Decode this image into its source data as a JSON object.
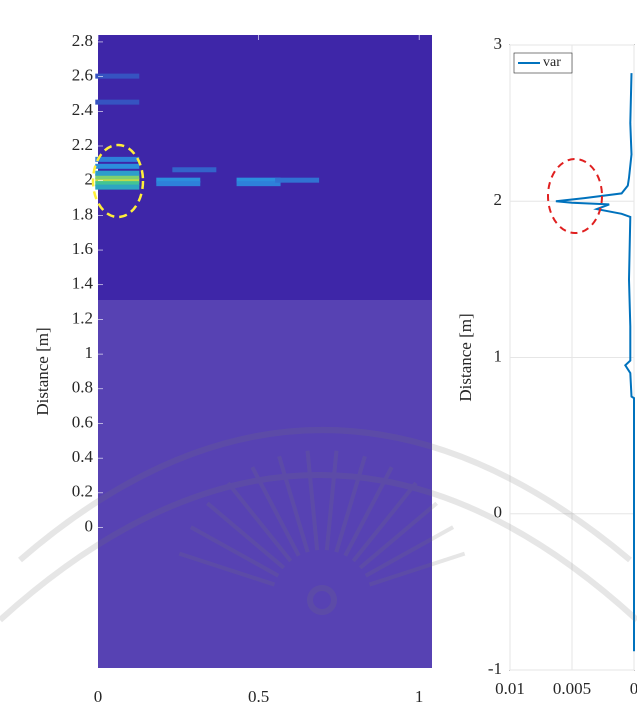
{
  "chart_data": [
    {
      "type": "heatmap",
      "ylabel": "Distance [m]",
      "x": [
        0.06,
        0.06,
        0.06,
        0.06,
        0.06,
        0.06,
        0.06,
        0.25,
        0.25,
        0.5,
        0.5,
        0.62,
        0.3,
        0.06,
        0.06
      ],
      "y": [
        2.0,
        2.02,
        1.98,
        1.96,
        2.04,
        2.08,
        2.12,
        2.0,
        1.98,
        2.0,
        1.98,
        2.0,
        2.06,
        2.6,
        2.45
      ],
      "values": [
        0.9,
        0.8,
        0.7,
        0.5,
        0.45,
        0.35,
        0.3,
        0.35,
        0.3,
        0.35,
        0.3,
        0.25,
        0.2,
        0.15,
        0.15
      ],
      "colormap": [
        "#3e26a8",
        "#2c8be0",
        "#2fc0a0",
        "#f9e625"
      ],
      "xlim": [
        0,
        1.04
      ],
      "ylim": [
        -0.81,
        2.84
      ],
      "xticks": [
        0,
        0.5,
        1
      ],
      "yticks": [
        0,
        0.2,
        0.4,
        0.6,
        0.8,
        1,
        1.2,
        1.4,
        1.6,
        1.8,
        2,
        2.2,
        2.4,
        2.6,
        2.8
      ]
    },
    {
      "type": "line",
      "ylabel": "Distance [m]",
      "series": [
        {
          "name": "var",
          "color": "#0072bd",
          "values": [
            0.0002,
            0.0003,
            0.0002,
            0.0004,
            0.0005,
            0.001,
            0.004,
            0.0063,
            0.005,
            0.002,
            0.003,
            0.001,
            0.0003,
            0.0004,
            0.0003,
            0.0003,
            0.0007,
            0.0003,
            0.0002,
            0,
            0
          ],
          "y": [
            2.82,
            2.5,
            2.3,
            2.15,
            2.1,
            2.05,
            2.02,
            2.0,
            1.99,
            1.98,
            1.95,
            1.92,
            1.9,
            1.5,
            1.2,
            0.98,
            0.95,
            0.9,
            0.75,
            0.74,
            -0.88
          ]
        }
      ],
      "legend": "upper-left",
      "xlim": [
        0.01,
        0
      ],
      "ylim": [
        -1,
        3
      ],
      "xticks": [
        0.01,
        0.005,
        0
      ],
      "yticks": [
        -1,
        0,
        1,
        2,
        3
      ],
      "grid": true
    }
  ]
}
